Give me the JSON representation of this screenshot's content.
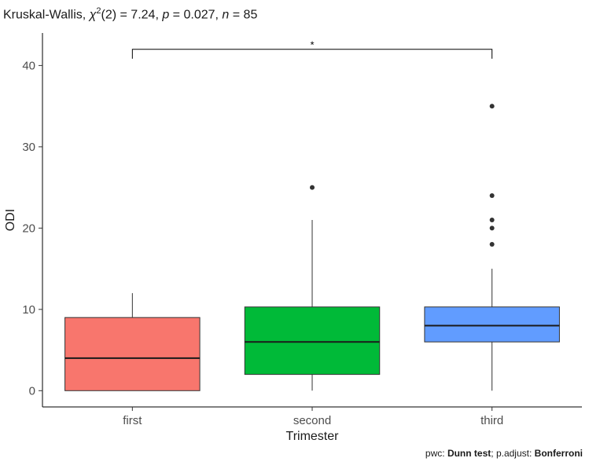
{
  "chart_data": {
    "type": "box",
    "subtitle": {
      "prefix": "Kruskal-Wallis, ",
      "chi": "χ",
      "chi_sup": "2",
      "df": "(2) = ",
      "stat": "7.24",
      "sep1": ", ",
      "p_label": "p",
      "p_eq": " = ",
      "p_value": "0.027",
      "sep2": ", ",
      "n_label": "n",
      "n_eq": " = ",
      "n_value": "85"
    },
    "caption": {
      "pwc_prefix": "pwc: ",
      "pwc_method": "Dunn test",
      "sep": "; p.adjust: ",
      "adjust_method": "Bonferroni"
    },
    "xlabel": "Trimester",
    "ylabel": "ODI",
    "ylim": [
      -2,
      44
    ],
    "yticks": [
      0,
      10,
      20,
      30,
      40
    ],
    "categories": [
      "first",
      "second",
      "third"
    ],
    "boxes": [
      {
        "category": "first",
        "q1": 0,
        "median": 4,
        "q3": 9,
        "whisker_low": 0,
        "whisker_high": 12,
        "outliers": [],
        "color": "#F8766D"
      },
      {
        "category": "second",
        "q1": 2,
        "median": 6,
        "q3": 10.3,
        "whisker_low": 0,
        "whisker_high": 21,
        "outliers": [
          25
        ],
        "color": "#00BA38"
      },
      {
        "category": "third",
        "q1": 6,
        "median": 8,
        "q3": 10.3,
        "whisker_low": 0,
        "whisker_high": 15,
        "outliers": [
          18,
          20,
          21,
          24,
          35
        ],
        "color": "#619CFF"
      }
    ],
    "significance": {
      "from": "first",
      "to": "third",
      "y": 42,
      "label": "*"
    },
    "grid": false
  }
}
